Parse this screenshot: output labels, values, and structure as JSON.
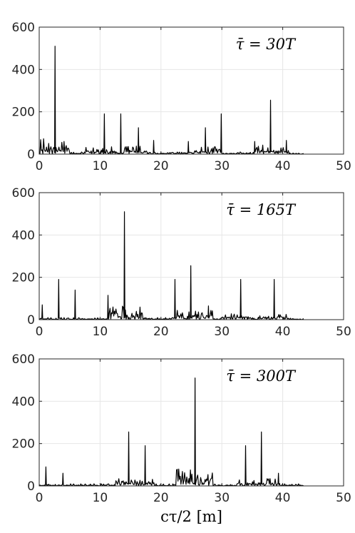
{
  "chart_data": [
    {
      "type": "line",
      "annotation": "τ̄ = 30T",
      "xlim": [
        0,
        50
      ],
      "ylim": [
        0,
        600
      ],
      "xticks": [
        0,
        10,
        20,
        30,
        40,
        50
      ],
      "yticks": [
        0,
        200,
        400,
        600
      ],
      "grid": true,
      "xlabel": "",
      "peaks": [
        {
          "x": 2.6,
          "y": 510
        },
        {
          "x": 10.7,
          "y": 190
        },
        {
          "x": 13.4,
          "y": 190
        },
        {
          "x": 16.3,
          "y": 125
        },
        {
          "x": 18.8,
          "y": 65
        },
        {
          "x": 24.5,
          "y": 60
        },
        {
          "x": 27.3,
          "y": 125
        },
        {
          "x": 29.9,
          "y": 190
        },
        {
          "x": 35.4,
          "y": 60
        },
        {
          "x": 38.0,
          "y": 255
        },
        {
          "x": 40.6,
          "y": 65
        }
      ],
      "busy": [
        {
          "from": 0.2,
          "to": 5.0,
          "level": 75
        },
        {
          "from": 7.5,
          "to": 13.0,
          "level": 35
        },
        {
          "from": 14.0,
          "to": 18.0,
          "level": 40
        },
        {
          "from": 25.5,
          "to": 30.0,
          "level": 35
        },
        {
          "from": 35.5,
          "to": 41.0,
          "level": 45
        }
      ],
      "x_end": 43.5
    },
    {
      "type": "line",
      "annotation": "τ̄ = 165T",
      "xlim": [
        0,
        50
      ],
      "ylim": [
        0,
        600
      ],
      "xticks": [
        0,
        10,
        20,
        30,
        40,
        50
      ],
      "yticks": [
        0,
        200,
        400,
        600
      ],
      "grid": true,
      "xlabel": "",
      "peaks": [
        {
          "x": 0.5,
          "y": 70
        },
        {
          "x": 3.2,
          "y": 190
        },
        {
          "x": 5.9,
          "y": 140
        },
        {
          "x": 11.3,
          "y": 115
        },
        {
          "x": 14.0,
          "y": 510
        },
        {
          "x": 22.3,
          "y": 190
        },
        {
          "x": 24.9,
          "y": 255
        },
        {
          "x": 27.8,
          "y": 65
        },
        {
          "x": 33.1,
          "y": 190
        },
        {
          "x": 38.6,
          "y": 190
        }
      ],
      "busy": [
        {
          "from": 11.5,
          "to": 17.0,
          "level": 75
        },
        {
          "from": 22.0,
          "to": 28.5,
          "level": 45
        },
        {
          "from": 30.0,
          "to": 41.0,
          "level": 30
        }
      ],
      "x_end": 43.5
    },
    {
      "type": "line",
      "annotation": "τ̄ = 300T",
      "xlim": [
        0,
        50
      ],
      "ylim": [
        0,
        600
      ],
      "xticks": [
        0,
        10,
        20,
        30,
        40,
        50
      ],
      "yticks": [
        0,
        200,
        400,
        600
      ],
      "grid": true,
      "xlabel": "cτ/2 [m]",
      "peaks": [
        {
          "x": 1.1,
          "y": 90
        },
        {
          "x": 3.9,
          "y": 60
        },
        {
          "x": 14.7,
          "y": 255
        },
        {
          "x": 17.4,
          "y": 190
        },
        {
          "x": 25.6,
          "y": 510
        },
        {
          "x": 33.9,
          "y": 190
        },
        {
          "x": 36.5,
          "y": 255
        },
        {
          "x": 39.3,
          "y": 60
        }
      ],
      "busy": [
        {
          "from": 12.5,
          "to": 19.0,
          "level": 40
        },
        {
          "from": 22.5,
          "to": 28.5,
          "level": 80
        },
        {
          "from": 32.5,
          "to": 39.5,
          "level": 35
        }
      ],
      "x_end": 43.5
    }
  ]
}
